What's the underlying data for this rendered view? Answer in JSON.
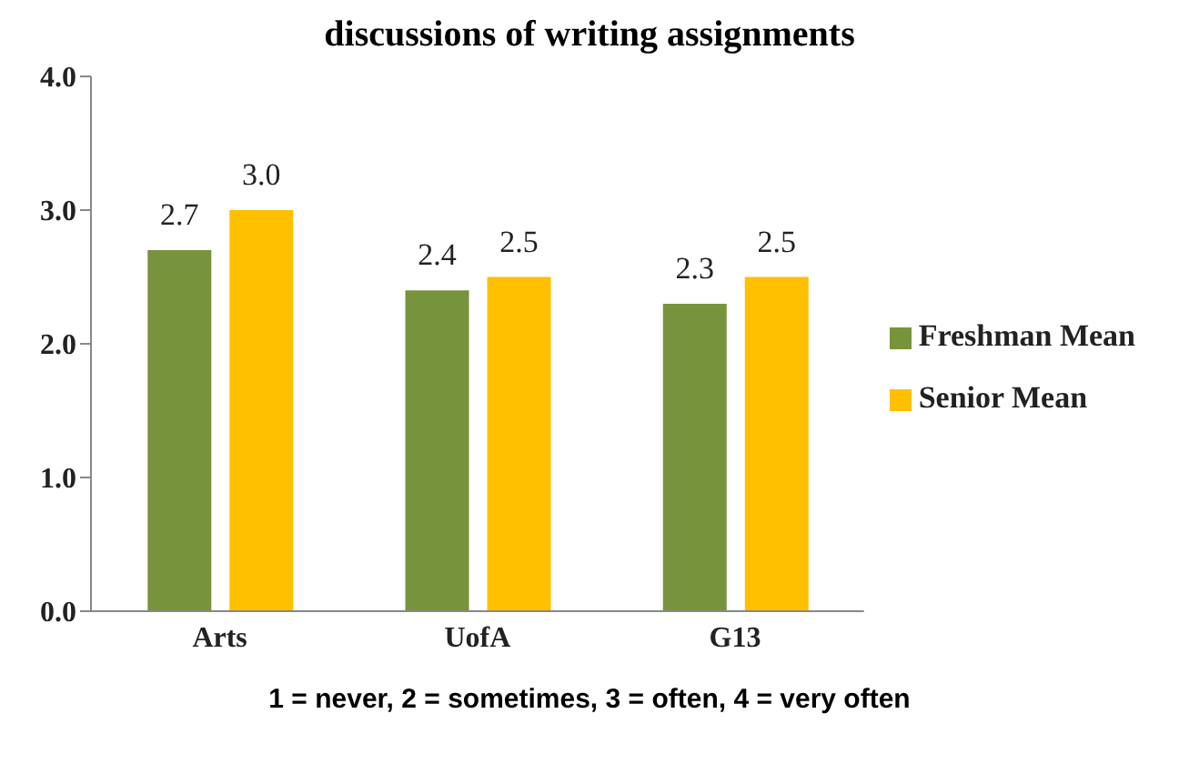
{
  "chart_data": {
    "type": "bar",
    "title": "discussions of writing assignments",
    "categories": [
      "Arts",
      "UofA",
      "G13"
    ],
    "series": [
      {
        "name": "Freshman Mean",
        "color": "#77933c",
        "values": [
          2.7,
          2.4,
          2.3
        ],
        "value_labels": [
          "2.7",
          "2.4",
          "2.3"
        ]
      },
      {
        "name": "Senior Mean",
        "color": "#ffc000",
        "values": [
          3.0,
          2.5,
          2.5
        ],
        "value_labels": [
          "3.0",
          "2.5",
          "2.5"
        ]
      }
    ],
    "ylim": [
      0,
      4
    ],
    "yticks": [
      {
        "value": 0,
        "label": "0.0"
      },
      {
        "value": 1,
        "label": "1.0"
      },
      {
        "value": 2,
        "label": "2.0"
      },
      {
        "value": 3,
        "label": "3.0"
      },
      {
        "value": 4,
        "label": "4.0"
      }
    ],
    "legend": "right",
    "annotations": [
      "1 = never, 2 = sometimes, 3 = often, 4 = very often"
    ]
  }
}
